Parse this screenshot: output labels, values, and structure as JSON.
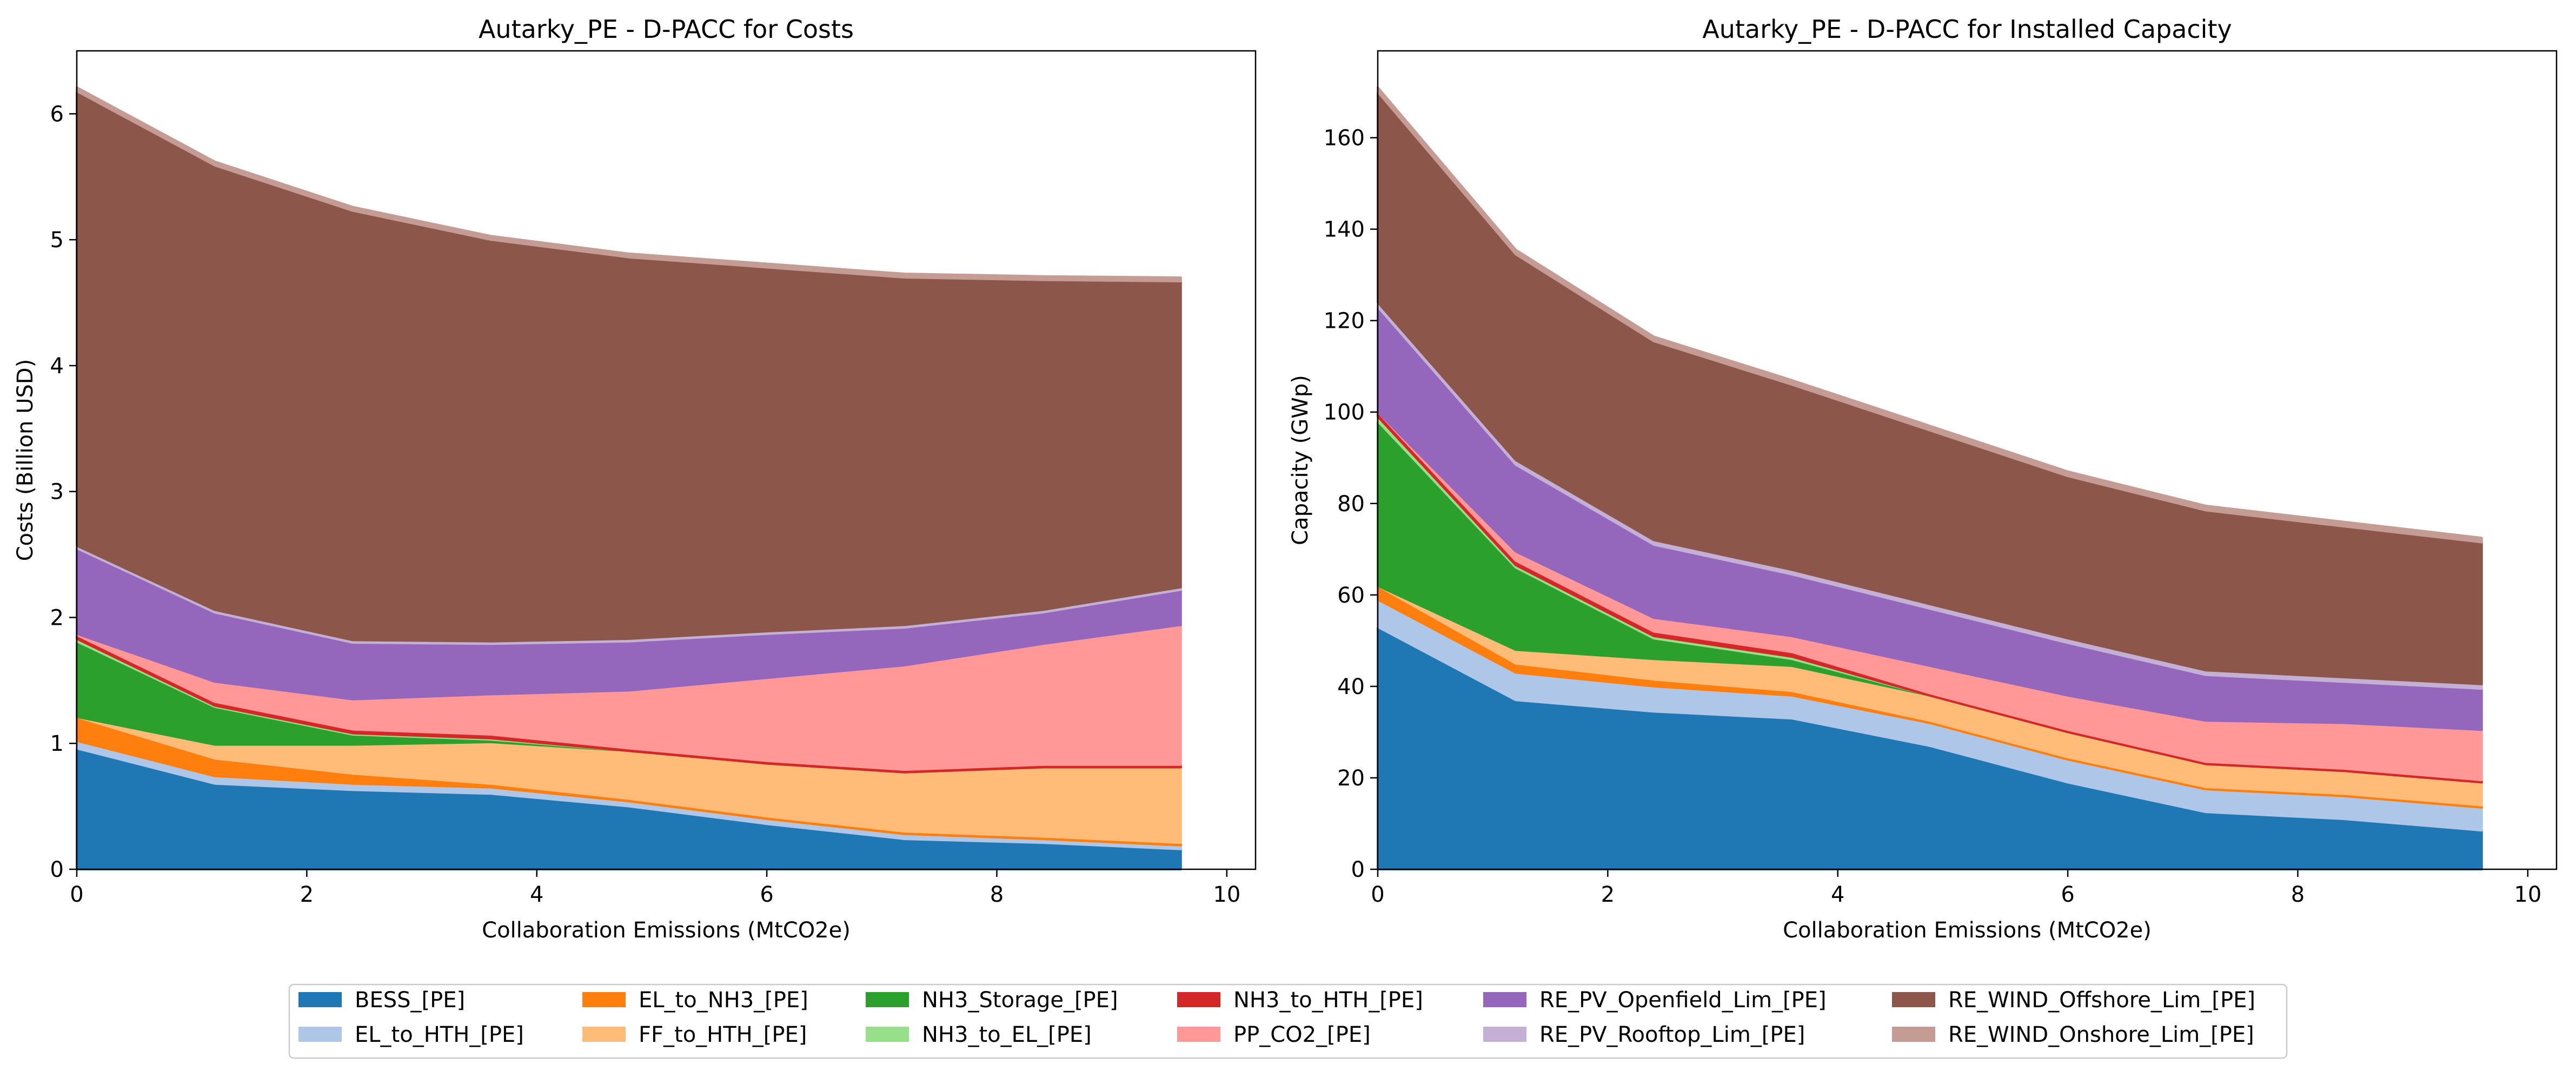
{
  "legend": {
    "entries": [
      {
        "label": "BESS_[PE]",
        "color": "#1f77b4"
      },
      {
        "label": "EL_to_HTH_[PE]",
        "color": "#aec7e8"
      },
      {
        "label": "EL_to_NH3_[PE]",
        "color": "#ff7f0e"
      },
      {
        "label": "FF_to_HTH_[PE]",
        "color": "#ffbb78"
      },
      {
        "label": "NH3_Storage_[PE]",
        "color": "#2ca02c"
      },
      {
        "label": "NH3_to_EL_[PE]",
        "color": "#98df8a"
      },
      {
        "label": "NH3_to_HTH_[PE]",
        "color": "#d62728"
      },
      {
        "label": "PP_CO2_[PE]",
        "color": "#ff9896"
      },
      {
        "label": "RE_PV_Openfield_Lim_[PE]",
        "color": "#9467bd"
      },
      {
        "label": "RE_PV_Rooftop_Lim_[PE]",
        "color": "#c5b0d5"
      },
      {
        "label": "RE_WIND_Offshore_Lim_[PE]",
        "color": "#8c564b"
      },
      {
        "label": "RE_WIND_Onshore_Lim_[PE]",
        "color": "#c49c94"
      }
    ]
  },
  "chart_data": [
    {
      "type": "area",
      "stacked": true,
      "title": "Autarky_PE - D-PACC for Costs",
      "xlabel": "Collaboration Emissions (MtCO2e)",
      "ylabel": "Costs (Billion USD)",
      "xlim": [
        0,
        10.25
      ],
      "ylim": [
        0,
        6.5
      ],
      "xticks": [
        0,
        2,
        4,
        6,
        8,
        10
      ],
      "yticks": [
        0,
        1,
        2,
        3,
        4,
        5,
        6
      ],
      "grid": false,
      "x": [
        0,
        1.2,
        2.4,
        3.6,
        4.8,
        6.0,
        7.2,
        8.4,
        9.6
      ],
      "series": [
        {
          "name": "BESS_[PE]",
          "values": [
            0.96,
            0.68,
            0.63,
            0.6,
            0.5,
            0.36,
            0.24,
            0.21,
            0.16
          ]
        },
        {
          "name": "EL_to_HTH_[PE]",
          "values": [
            0.06,
            0.06,
            0.05,
            0.05,
            0.04,
            0.04,
            0.04,
            0.03,
            0.03
          ]
        },
        {
          "name": "EL_to_NH3_[PE]",
          "values": [
            0.19,
            0.14,
            0.08,
            0.03,
            0.02,
            0.02,
            0.02,
            0.02,
            0.02
          ]
        },
        {
          "name": "FF_to_HTH_[PE]",
          "values": [
            0.0,
            0.11,
            0.23,
            0.33,
            0.38,
            0.42,
            0.47,
            0.55,
            0.6
          ]
        },
        {
          "name": "NH3_Storage_[PE]",
          "values": [
            0.6,
            0.3,
            0.08,
            0.02,
            0.0,
            0.0,
            0.0,
            0.0,
            0.0
          ]
        },
        {
          "name": "NH3_to_EL_[PE]",
          "values": [
            0.02,
            0.01,
            0.01,
            0.01,
            0.0,
            0.0,
            0.0,
            0.0,
            0.0
          ]
        },
        {
          "name": "NH3_to_HTH_[PE]",
          "values": [
            0.03,
            0.03,
            0.03,
            0.03,
            0.02,
            0.02,
            0.02,
            0.02,
            0.02
          ]
        },
        {
          "name": "PP_CO2_[PE]",
          "values": [
            0.01,
            0.16,
            0.24,
            0.32,
            0.46,
            0.66,
            0.83,
            0.96,
            1.11
          ]
        },
        {
          "name": "RE_PV_Openfield_Lim_[PE]",
          "values": [
            0.68,
            0.55,
            0.45,
            0.4,
            0.39,
            0.35,
            0.3,
            0.25,
            0.28
          ]
        },
        {
          "name": "RE_PV_Rooftop_Lim_[PE]",
          "values": [
            0.02,
            0.02,
            0.02,
            0.02,
            0.02,
            0.02,
            0.02,
            0.02,
            0.02
          ]
        },
        {
          "name": "RE_WIND_Offshore_Lim_[PE]",
          "values": [
            3.61,
            3.53,
            3.41,
            3.19,
            3.03,
            2.89,
            2.76,
            2.62,
            2.43
          ]
        },
        {
          "name": "RE_WIND_Onshore_Lim_[PE]",
          "values": [
            0.03,
            0.03,
            0.03,
            0.03,
            0.03,
            0.03,
            0.03,
            0.03,
            0.03
          ]
        }
      ]
    },
    {
      "type": "area",
      "stacked": true,
      "title": "Autarky_PE - D-PACC for Installed Capacity",
      "xlabel": "Collaboration Emissions (MtCO2e)",
      "ylabel": "Capacity (GWp)",
      "xlim": [
        0,
        10.25
      ],
      "ylim": [
        0,
        179
      ],
      "xticks": [
        0,
        2,
        4,
        6,
        8,
        10
      ],
      "yticks": [
        0,
        20,
        40,
        60,
        80,
        100,
        120,
        140,
        160
      ],
      "grid": false,
      "x": [
        0,
        1.2,
        2.4,
        3.6,
        4.8,
        6.0,
        7.2,
        8.4,
        9.6
      ],
      "series": [
        {
          "name": "BESS_[PE]",
          "values": [
            53,
            37,
            34.5,
            33,
            27,
            19,
            12.5,
            11,
            8.5
          ]
        },
        {
          "name": "EL_to_HTH_[PE]",
          "values": [
            6,
            6,
            5.5,
            5,
            5,
            5,
            5,
            5,
            5
          ]
        },
        {
          "name": "EL_to_NH3_[PE]",
          "values": [
            3,
            2,
            1.5,
            1,
            0.5,
            0.5,
            0.5,
            0.5,
            0.5
          ]
        },
        {
          "name": "FF_to_HTH_[PE]",
          "values": [
            0,
            3,
            4.5,
            5.5,
            5.5,
            5.5,
            5,
            5,
            5
          ]
        },
        {
          "name": "NH3_Storage_[PE]",
          "values": [
            36,
            18,
            4.5,
            1.5,
            0,
            0,
            0,
            0,
            0
          ]
        },
        {
          "name": "NH3_to_EL_[PE]",
          "values": [
            1,
            0.5,
            0.5,
            0.5,
            0,
            0,
            0,
            0,
            0
          ]
        },
        {
          "name": "NH3_to_HTH_[PE]",
          "values": [
            1,
            1,
            1,
            1,
            0.5,
            0.5,
            0.5,
            0.5,
            0.5
          ]
        },
        {
          "name": "PP_CO2_[PE]",
          "values": [
            0,
            2,
            3,
            3.5,
            6,
            7.5,
            9,
            10,
            11
          ]
        },
        {
          "name": "RE_PV_Openfield_Lim_[PE]",
          "values": [
            23,
            19,
            16,
            13.5,
            12.5,
            11.5,
            10,
            9,
            9
          ]
        },
        {
          "name": "RE_PV_Rooftop_Lim_[PE]",
          "values": [
            1,
            1,
            1,
            1,
            1,
            1,
            1,
            1,
            1
          ]
        },
        {
          "name": "RE_WIND_Offshore_Lim_[PE]",
          "values": [
            46,
            45,
            43.5,
            40.5,
            38,
            35.5,
            35,
            33,
            31
          ]
        },
        {
          "name": "RE_WIND_Onshore_Lim_[PE]",
          "values": [
            1,
            1,
            1,
            1,
            1,
            1,
            1,
            1,
            1
          ]
        }
      ]
    }
  ]
}
